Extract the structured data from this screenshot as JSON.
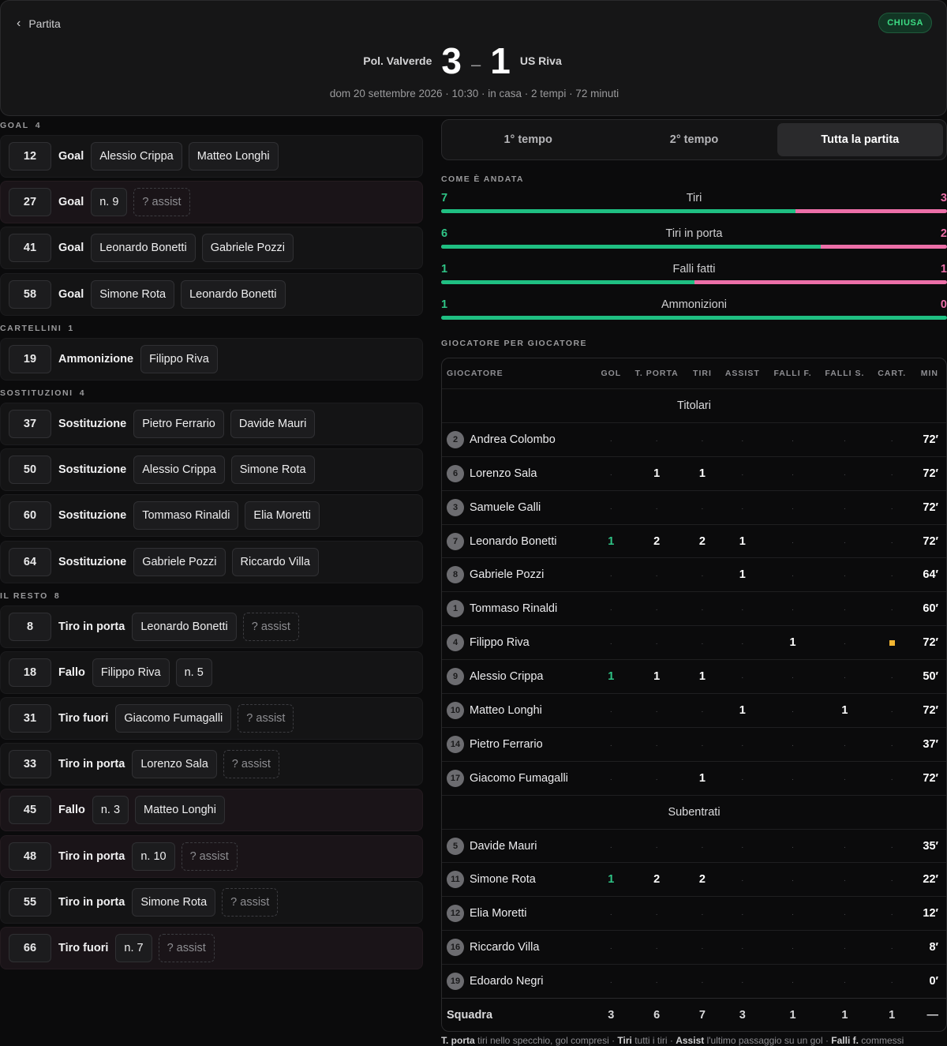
{
  "header": {
    "back_label": "Partita",
    "status": "CHIUSA",
    "home_team": "Pol. Valverde",
    "away_team": "US Riva",
    "home_score": "3",
    "away_score": "1",
    "score_sep": "–",
    "meta": "dom 20 settembre 2026 · 10:30 · in casa · 2 tempi · 72 minuti"
  },
  "sections": [
    {
      "title": "GOAL",
      "count": "4",
      "events": [
        {
          "minute": "12",
          "type": "Goal",
          "chips": [
            {
              "t": "Alessio Crippa"
            },
            {
              "t": "Matteo Longhi"
            }
          ]
        },
        {
          "minute": "27",
          "type": "Goal",
          "alt": true,
          "chips": [
            {
              "t": "n. 9"
            },
            {
              "t": "? assist",
              "dashed": true
            }
          ]
        },
        {
          "minute": "41",
          "type": "Goal",
          "chips": [
            {
              "t": "Leonardo Bonetti"
            },
            {
              "t": "Gabriele Pozzi"
            }
          ]
        },
        {
          "minute": "58",
          "type": "Goal",
          "chips": [
            {
              "t": "Simone Rota"
            },
            {
              "t": "Leonardo Bonetti"
            }
          ]
        }
      ]
    },
    {
      "title": "CARTELLINI",
      "count": "1",
      "events": [
        {
          "minute": "19",
          "type": "Ammonizione",
          "chips": [
            {
              "t": "Filippo Riva"
            }
          ]
        }
      ]
    },
    {
      "title": "SOSTITUZIONI",
      "count": "4",
      "events": [
        {
          "minute": "37",
          "type": "Sostituzione",
          "chips": [
            {
              "t": "Pietro Ferrario"
            },
            {
              "t": "Davide Mauri"
            }
          ]
        },
        {
          "minute": "50",
          "type": "Sostituzione",
          "chips": [
            {
              "t": "Alessio Crippa"
            },
            {
              "t": "Simone Rota"
            }
          ]
        },
        {
          "minute": "60",
          "type": "Sostituzione",
          "chips": [
            {
              "t": "Tommaso Rinaldi"
            },
            {
              "t": "Elia Moretti"
            }
          ]
        },
        {
          "minute": "64",
          "type": "Sostituzione",
          "chips": [
            {
              "t": "Gabriele Pozzi"
            },
            {
              "t": "Riccardo Villa"
            }
          ]
        }
      ]
    },
    {
      "title": "IL RESTO",
      "count": "8",
      "events": [
        {
          "minute": "8",
          "type": "Tiro in porta",
          "chips": [
            {
              "t": "Leonardo Bonetti"
            },
            {
              "t": "? assist",
              "dashed": true
            }
          ]
        },
        {
          "minute": "18",
          "type": "Fallo",
          "chips": [
            {
              "t": "Filippo Riva"
            },
            {
              "t": "n. 5"
            }
          ]
        },
        {
          "minute": "31",
          "type": "Tiro fuori",
          "chips": [
            {
              "t": "Giacomo Fumagalli"
            },
            {
              "t": "? assist",
              "dashed": true
            }
          ]
        },
        {
          "minute": "33",
          "type": "Tiro in porta",
          "chips": [
            {
              "t": "Lorenzo Sala"
            },
            {
              "t": "? assist",
              "dashed": true
            }
          ]
        },
        {
          "minute": "45",
          "type": "Fallo",
          "alt": true,
          "chips": [
            {
              "t": "n. 3"
            },
            {
              "t": "Matteo Longhi"
            }
          ]
        },
        {
          "minute": "48",
          "type": "Tiro in porta",
          "alt": true,
          "chips": [
            {
              "t": "n. 10"
            },
            {
              "t": "? assist",
              "dashed": true
            }
          ]
        },
        {
          "minute": "55",
          "type": "Tiro in porta",
          "chips": [
            {
              "t": "Simone Rota"
            },
            {
              "t": "? assist",
              "dashed": true
            }
          ]
        },
        {
          "minute": "66",
          "type": "Tiro fuori",
          "alt": true,
          "chips": [
            {
              "t": "n. 7"
            },
            {
              "t": "? assist",
              "dashed": true
            }
          ]
        }
      ]
    }
  ],
  "tabs": [
    "1° tempo",
    "2° tempo",
    "Tutta la partita"
  ],
  "active_tab": 2,
  "stats_label": "COME È ANDATA",
  "stats": [
    {
      "name": "Tiri",
      "home": 7,
      "away": 3
    },
    {
      "name": "Tiri in porta",
      "home": 6,
      "away": 2
    },
    {
      "name": "Falli fatti",
      "home": 1,
      "away": 1
    },
    {
      "name": "Ammonizioni",
      "home": 1,
      "away": 0
    }
  ],
  "players_label": "GIOCATORE PER GIOCATORE",
  "columns": [
    "GIOCATORE",
    "GOL",
    "T. PORTA",
    "TIRI",
    "ASSIST",
    "FALLI F.",
    "FALLI S.",
    "CART.",
    "MIN"
  ],
  "groups": [
    {
      "title": "Titolari",
      "players": [
        {
          "n": "2",
          "name": "Andrea Colombo",
          "v": [
            null,
            null,
            null,
            null,
            null,
            null,
            null
          ],
          "min": "72′"
        },
        {
          "n": "6",
          "name": "Lorenzo Sala",
          "v": [
            null,
            1,
            1,
            null,
            null,
            null,
            null
          ],
          "min": "72′"
        },
        {
          "n": "3",
          "name": "Samuele Galli",
          "v": [
            null,
            null,
            null,
            null,
            null,
            null,
            null
          ],
          "min": "72′"
        },
        {
          "n": "7",
          "name": "Leonardo Bonetti",
          "v": [
            1,
            2,
            2,
            1,
            null,
            null,
            null
          ],
          "min": "72′"
        },
        {
          "n": "8",
          "name": "Gabriele Pozzi",
          "v": [
            null,
            null,
            null,
            1,
            null,
            null,
            null
          ],
          "min": "64′"
        },
        {
          "n": "1",
          "name": "Tommaso Rinaldi",
          "v": [
            null,
            null,
            null,
            null,
            null,
            null,
            null
          ],
          "min": "60′"
        },
        {
          "n": "4",
          "name": "Filippo Riva",
          "v": [
            null,
            null,
            null,
            null,
            1,
            null,
            "yellow"
          ],
          "min": "72′"
        },
        {
          "n": "9",
          "name": "Alessio Crippa",
          "v": [
            1,
            1,
            1,
            null,
            null,
            null,
            null
          ],
          "min": "50′"
        },
        {
          "n": "10",
          "name": "Matteo Longhi",
          "v": [
            null,
            null,
            null,
            1,
            null,
            1,
            null
          ],
          "min": "72′"
        },
        {
          "n": "14",
          "name": "Pietro Ferrario",
          "v": [
            null,
            null,
            null,
            null,
            null,
            null,
            null
          ],
          "min": "37′"
        },
        {
          "n": "17",
          "name": "Giacomo Fumagalli",
          "v": [
            null,
            null,
            1,
            null,
            null,
            null,
            null
          ],
          "min": "72′"
        }
      ]
    },
    {
      "title": "Subentrati",
      "players": [
        {
          "n": "5",
          "name": "Davide Mauri",
          "v": [
            null,
            null,
            null,
            null,
            null,
            null,
            null
          ],
          "min": "35′"
        },
        {
          "n": "11",
          "name": "Simone Rota",
          "v": [
            1,
            2,
            2,
            null,
            null,
            null,
            null
          ],
          "min": "22′"
        },
        {
          "n": "12",
          "name": "Elia Moretti",
          "v": [
            null,
            null,
            null,
            null,
            null,
            null,
            null
          ],
          "min": "12′"
        },
        {
          "n": "16",
          "name": "Riccardo Villa",
          "v": [
            null,
            null,
            null,
            null,
            null,
            null,
            null
          ],
          "min": "8′"
        },
        {
          "n": "19",
          "name": "Edoardo Negri",
          "v": [
            null,
            null,
            null,
            null,
            null,
            null,
            null
          ],
          "min": "0′"
        }
      ]
    }
  ],
  "team_row": {
    "label": "Squadra",
    "v": [
      "3",
      "6",
      "7",
      "3",
      "1",
      "1",
      "1"
    ],
    "min": "—"
  },
  "footnote": [
    {
      "b": "T. porta",
      "t": " tiri nello specchio, gol compresi · "
    },
    {
      "b": "Tiri",
      "t": " tutti i tiri · "
    },
    {
      "b": "Assist",
      "t": " l'ultimo passaggio su un gol · "
    },
    {
      "b": "Falli f.",
      "t": " commessi"
    }
  ],
  "colors": {
    "home": "#1fbf82",
    "away": "#ec6fa8",
    "yellow_card": "#f2b632",
    "status": "#3ddc84"
  }
}
